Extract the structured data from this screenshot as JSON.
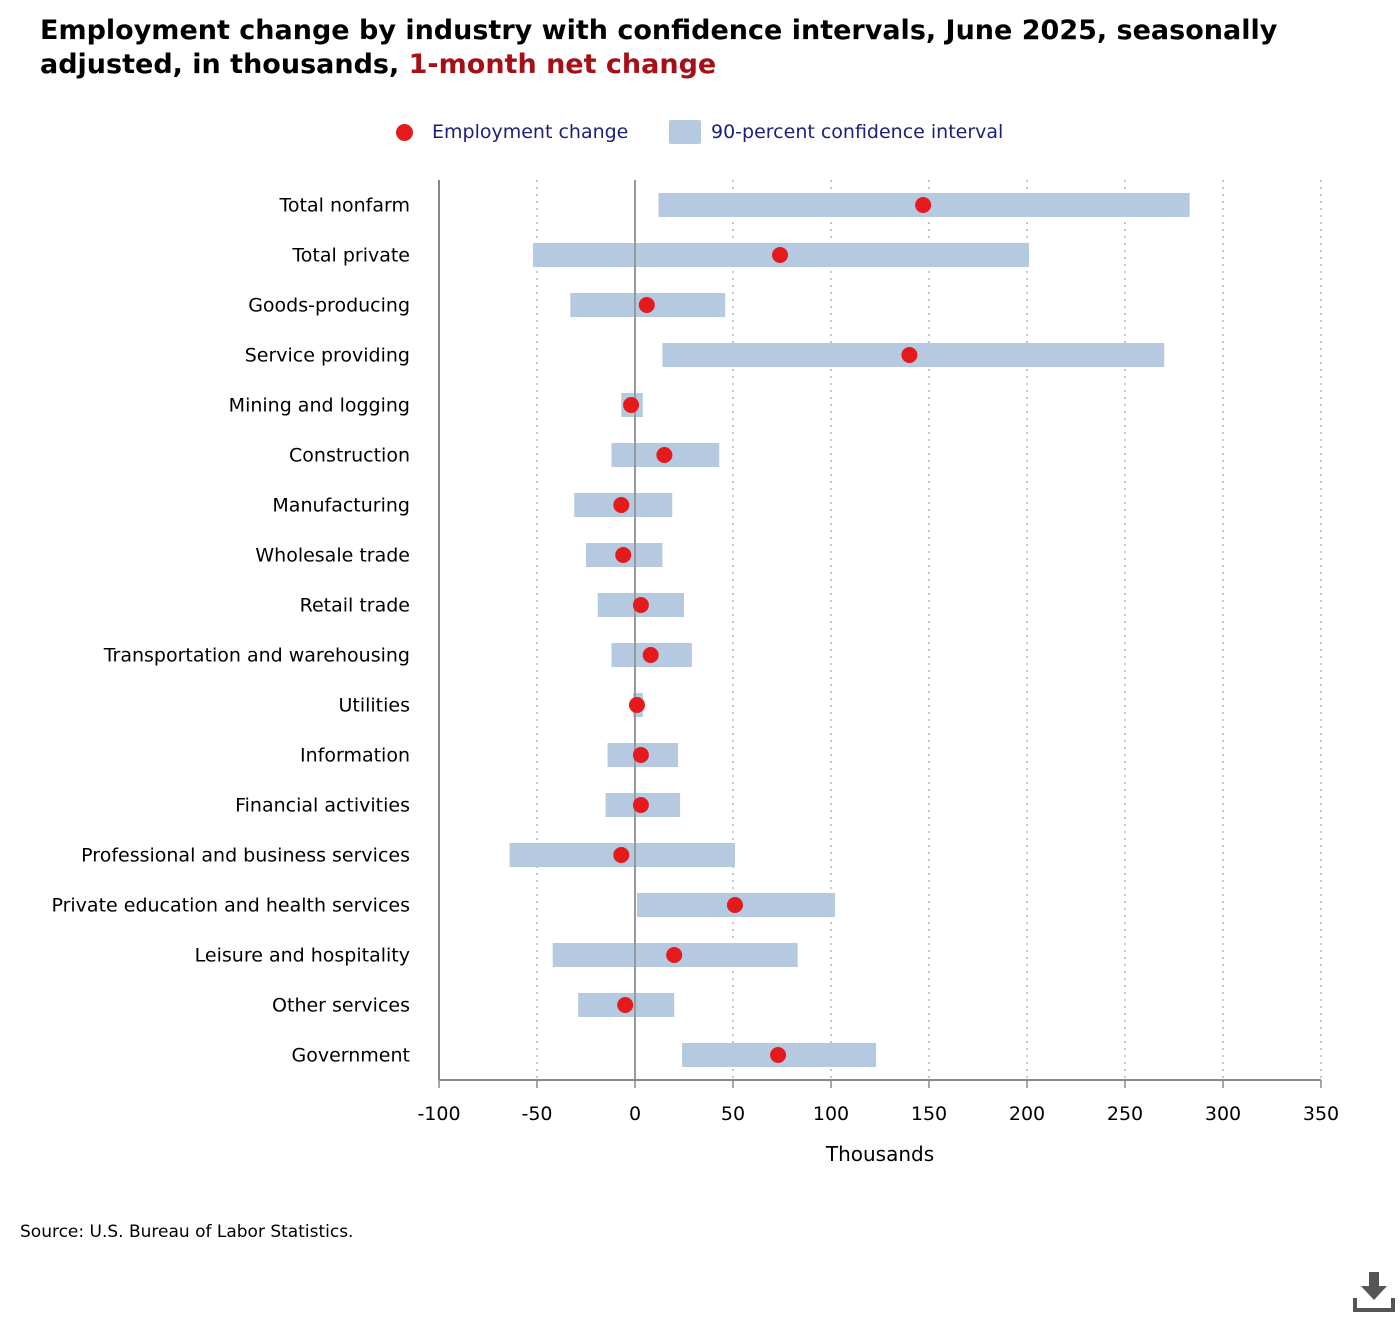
{
  "title": {
    "main": "Employment change by industry with confidence intervals, June 2025, seasonally adjusted, in thousands, ",
    "highlight": "1-month net change"
  },
  "legend": {
    "dot_label": "Employment change",
    "band_label": "90-percent confidence interval"
  },
  "source": "Source: U.S. Bureau of Labor Statistics.",
  "colors": {
    "dot": "#e41a1c",
    "band": "#b5c9e0",
    "highlight": "#a50f15",
    "legend_text": "#1a1f7a"
  },
  "icons": {
    "download": "download-icon"
  },
  "chart_data": {
    "type": "dot-interval",
    "title": "Employment change by industry with confidence intervals, June 2025, seasonally adjusted, in thousands, 1-month net change",
    "xlabel": "Thousands",
    "ylabel": "",
    "xlim": [
      -100,
      350
    ],
    "xticks": [
      -100,
      -50,
      0,
      50,
      100,
      150,
      200,
      250,
      300,
      350
    ],
    "grid": "vertical dotted",
    "legend_position": "top-center",
    "categories": [
      "Total nonfarm",
      "Total private",
      "Goods-producing",
      "Service providing",
      "Mining and logging",
      "Construction",
      "Manufacturing",
      "Wholesale trade",
      "Retail trade",
      "Transportation and warehousing",
      "Utilities",
      "Information",
      "Financial activities",
      "Professional and business services",
      "Private education and health services",
      "Leisure and hospitality",
      "Other services",
      "Government"
    ],
    "series": [
      {
        "name": "Employment change",
        "values": [
          147,
          74,
          6,
          140,
          -2,
          15,
          -7,
          -6,
          3,
          8,
          1,
          3,
          3,
          -7,
          51,
          20,
          -5,
          73
        ]
      },
      {
        "name": "90-percent confidence interval",
        "low": [
          12,
          -52,
          -33,
          14,
          -7,
          -12,
          -31,
          -25,
          -19,
          -12,
          -1,
          -14,
          -15,
          -64,
          1,
          -42,
          -29,
          24
        ],
        "high": [
          283,
          201,
          46,
          270,
          4,
          43,
          19,
          14,
          25,
          29,
          4,
          22,
          23,
          51,
          102,
          83,
          20,
          123
        ]
      }
    ]
  }
}
